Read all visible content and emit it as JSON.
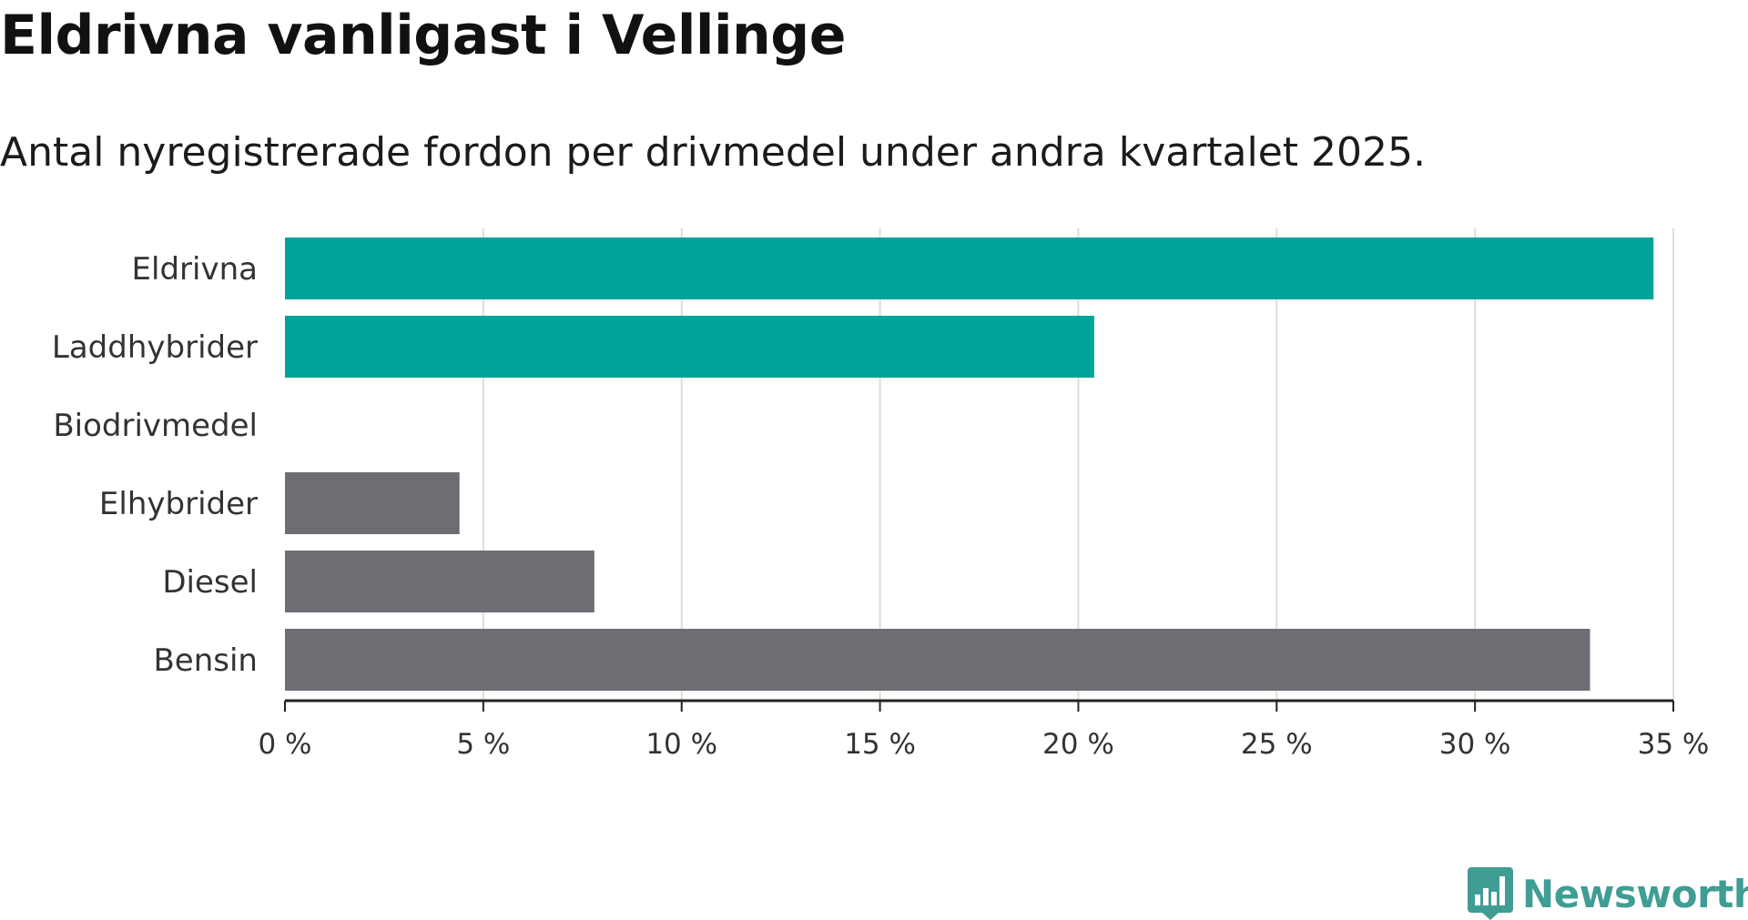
{
  "header": {
    "title": "Eldrivna vanligast i Vellinge",
    "subtitle": "Antal nyregistrerade fordon per drivmedel under andra kvartalet 2025."
  },
  "chart_data": {
    "type": "bar",
    "orientation": "horizontal",
    "title": "Eldrivna vanligast i Vellinge",
    "subtitle": "Antal nyregistrerade fordon per drivmedel under andra kvartalet 2025.",
    "xlabel": "",
    "ylabel": "",
    "categories": [
      "Eldrivna",
      "Laddhybrider",
      "Biodrivmedel",
      "Elhybrider",
      "Diesel",
      "Bensin"
    ],
    "values": [
      34.5,
      20.4,
      0,
      4.4,
      7.8,
      32.9
    ],
    "bar_colors": [
      "#00a39a",
      "#00a39a",
      "#00a39a",
      "#6e6d74",
      "#6e6d74",
      "#6e6d74"
    ],
    "xlim": [
      0,
      35
    ],
    "ticks": [
      0,
      5,
      10,
      15,
      20,
      25,
      30,
      35
    ],
    "tick_labels": [
      "0 %",
      "5 %",
      "10 %",
      "15 %",
      "20 %",
      "25 %",
      "30 %",
      "35 %"
    ],
    "grid": "vertical",
    "legend": "none"
  },
  "colors": {
    "accent": "#00a39a",
    "neutral": "#6e6d74",
    "grid": "#dddddd",
    "axis": "#222222",
    "brand": "#3f9d94"
  },
  "logo": {
    "text": "Newsworthy",
    "icon": "bar-chart-speech-bubble-icon"
  }
}
